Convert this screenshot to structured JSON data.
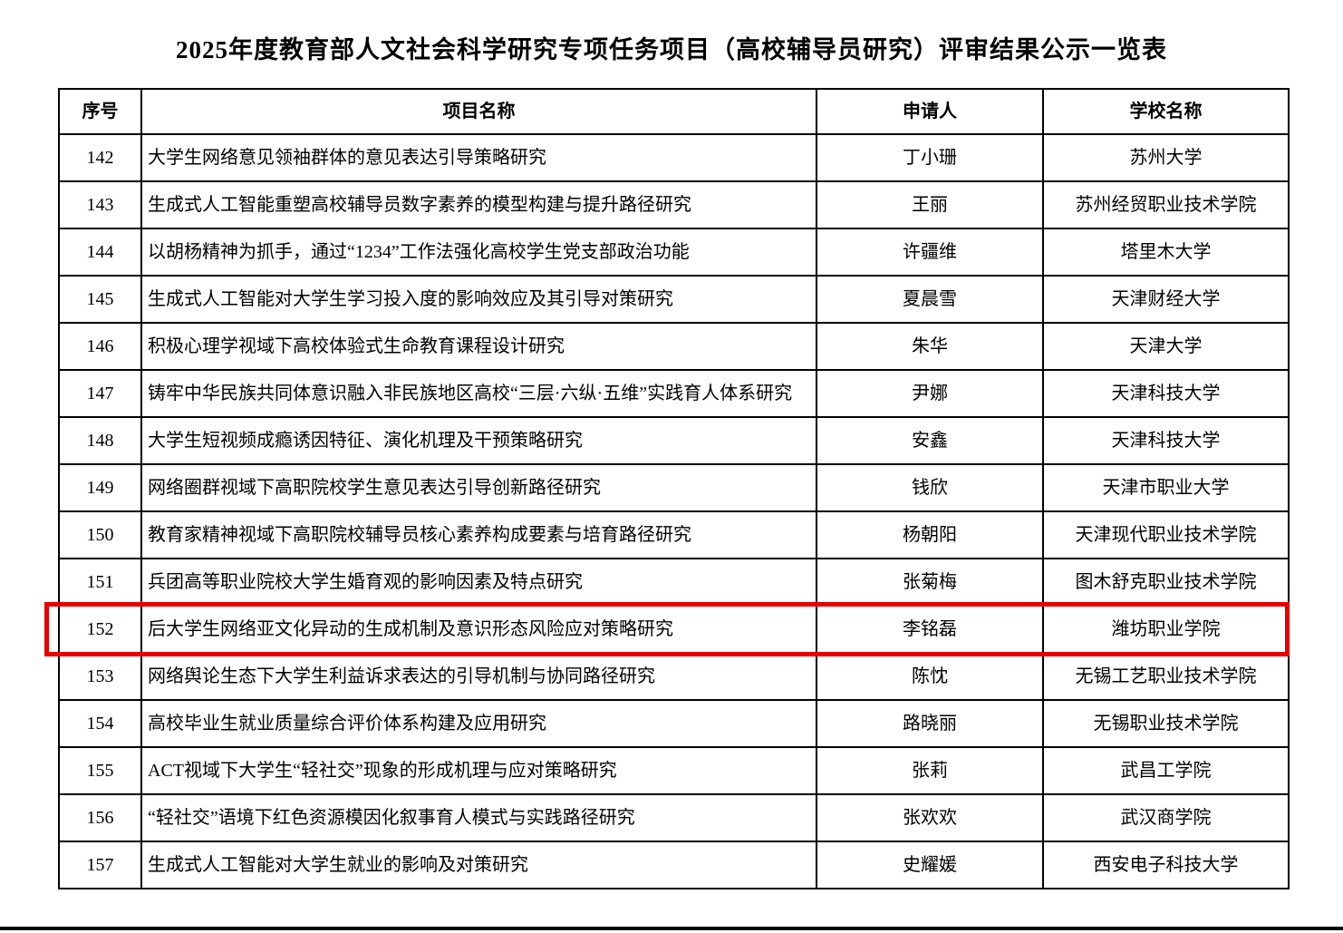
{
  "title": "2025年度教育部人文社会科学研究专项任务项目（高校辅导员研究）评审结果公示一览表",
  "table": {
    "headers": [
      "序号",
      "项目名称",
      "申请人",
      "学校名称"
    ],
    "rows": [
      {
        "no": "142",
        "project": "大学生网络意见领袖群体的意见表达引导策略研究",
        "applicant": "丁小珊",
        "school": "苏州大学",
        "highlighted": false
      },
      {
        "no": "143",
        "project": "生成式人工智能重塑高校辅导员数字素养的模型构建与提升路径研究",
        "applicant": "王丽",
        "school": "苏州经贸职业技术学院",
        "highlighted": false
      },
      {
        "no": "144",
        "project": "以胡杨精神为抓手，通过“1234”工作法强化高校学生党支部政治功能",
        "applicant": "许疆维",
        "school": "塔里木大学",
        "highlighted": false
      },
      {
        "no": "145",
        "project": "生成式人工智能对大学生学习投入度的影响效应及其引导对策研究",
        "applicant": "夏晨雪",
        "school": "天津财经大学",
        "highlighted": false
      },
      {
        "no": "146",
        "project": "积极心理学视域下高校体验式生命教育课程设计研究",
        "applicant": "朱华",
        "school": "天津大学",
        "highlighted": false
      },
      {
        "no": "147",
        "project": "铸牢中华民族共同体意识融入非民族地区高校“三层·六纵·五维”实践育人体系研究",
        "applicant": "尹娜",
        "school": "天津科技大学",
        "highlighted": false
      },
      {
        "no": "148",
        "project": "大学生短视频成瘾诱因特征、演化机理及干预策略研究",
        "applicant": "安鑫",
        "school": "天津科技大学",
        "highlighted": false
      },
      {
        "no": "149",
        "project": "网络圈群视域下高职院校学生意见表达引导创新路径研究",
        "applicant": "钱欣",
        "school": "天津市职业大学",
        "highlighted": false
      },
      {
        "no": "150",
        "project": "教育家精神视域下高职院校辅导员核心素养构成要素与培育路径研究",
        "applicant": "杨朝阳",
        "school": "天津现代职业技术学院",
        "highlighted": false
      },
      {
        "no": "151",
        "project": "兵团高等职业院校大学生婚育观的影响因素及特点研究",
        "applicant": "张菊梅",
        "school": "图木舒克职业技术学院",
        "highlighted": false
      },
      {
        "no": "152",
        "project": "后大学生网络亚文化异动的生成机制及意识形态风险应对策略研究",
        "applicant": "李铭磊",
        "school": "潍坊职业学院",
        "highlighted": true
      },
      {
        "no": "153",
        "project": "网络舆论生态下大学生利益诉求表达的引导机制与协同路径研究",
        "applicant": "陈忱",
        "school": "无锡工艺职业技术学院",
        "highlighted": false
      },
      {
        "no": "154",
        "project": "高校毕业生就业质量综合评价体系构建及应用研究",
        "applicant": "路晓丽",
        "school": "无锡职业技术学院",
        "highlighted": false
      },
      {
        "no": "155",
        "project": "ACT视域下大学生“轻社交”现象的形成机理与应对策略研究",
        "applicant": "张莉",
        "school": "武昌工学院",
        "highlighted": false
      },
      {
        "no": "156",
        "project": "“轻社交”语境下红色资源模因化叙事育人模式与实践路径研究",
        "applicant": "张欢欢",
        "school": "武汉商学院",
        "highlighted": false
      },
      {
        "no": "157",
        "project": "生成式人工智能对大学生就业的影响及对策研究",
        "applicant": "史耀媛",
        "school": "西安电子科技大学",
        "highlighted": false
      }
    ]
  },
  "highlight": {
    "row_no": "152",
    "color": "#e60000"
  },
  "colors": {
    "background": "#ffffff",
    "text": "#000000",
    "table_border": "#000000",
    "highlight_border": "#e60000"
  }
}
